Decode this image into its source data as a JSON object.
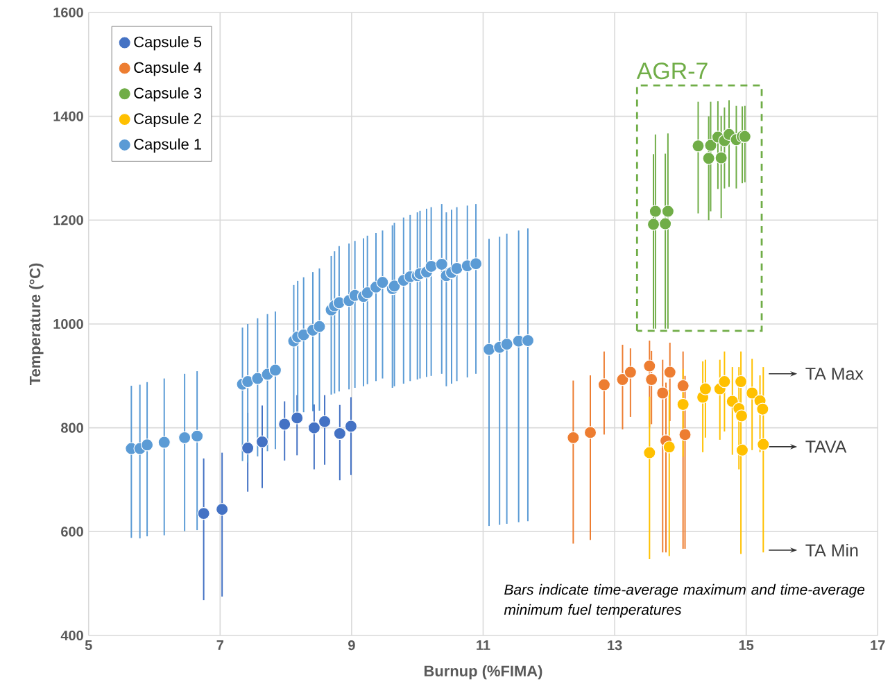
{
  "chart_data": {
    "type": "scatter",
    "xlabel": "Burnup (%FIMA)",
    "ylabel": "Temperature (°C)",
    "xlim": [
      5,
      17
    ],
    "xticks": [
      5,
      7,
      9,
      11,
      13,
      15,
      17
    ],
    "ylim": [
      400,
      1600
    ],
    "yticks": [
      400,
      600,
      800,
      1000,
      1200,
      1400,
      1600
    ],
    "grid": true,
    "legend": "top left",
    "marker": "circle",
    "annotations": [
      "AGR-7",
      "TA Max",
      "TAVA",
      "TA Min",
      "*Bars indicate time-average maximum and time-average minimum fuel temperatures*"
    ],
    "series": [
      {
        "name": "Capsule 5",
        "color": "#4472c4",
        "x": [
          6.75,
          7.03,
          7.42,
          7.64,
          7.98,
          8.17,
          8.43,
          8.59,
          8.82,
          8.99
        ],
        "values": [
          635,
          643,
          761,
          773,
          807,
          819,
          800,
          812,
          789,
          803
        ],
        "errors": [
          [
            468,
            741
          ],
          [
            475,
            752
          ],
          [
            677,
            829
          ],
          [
            684,
            843
          ],
          [
            737,
            851
          ],
          [
            747,
            863
          ],
          [
            720,
            845
          ],
          [
            729,
            863
          ],
          [
            699,
            844
          ],
          [
            709,
            859
          ]
        ]
      },
      {
        "name": "Capsule 4",
        "color": "#ed7d31",
        "x": [
          12.37,
          12.63,
          12.84,
          13.12,
          13.24,
          13.53,
          13.56,
          13.73,
          13.78,
          13.84,
          14.04,
          14.07
        ],
        "values": [
          781,
          791,
          883,
          893,
          907,
          919,
          893,
          867,
          775,
          907,
          881,
          787
        ],
        "errors": [
          [
            577,
            891
          ],
          [
            584,
            901
          ],
          [
            787,
            947
          ],
          [
            797,
            960
          ],
          [
            821,
            953
          ],
          [
            801,
            968
          ],
          [
            807,
            948
          ],
          [
            560,
            931
          ],
          [
            560,
            887
          ],
          [
            813,
            964
          ],
          [
            567,
            947
          ],
          [
            567,
            900
          ]
        ]
      },
      {
        "name": "Capsule 3",
        "color": "#70ad47",
        "x": [
          13.59,
          13.62,
          13.77,
          13.81,
          14.27,
          14.43,
          14.46,
          14.57,
          14.62,
          14.67,
          14.74,
          14.85,
          14.94,
          14.98
        ],
        "values": [
          1192,
          1217,
          1193,
          1217,
          1343,
          1319,
          1344,
          1360,
          1320,
          1353,
          1365,
          1355,
          1361,
          1361
        ],
        "errors": [
          [
            991,
            1327
          ],
          [
            991,
            1365
          ],
          [
            991,
            1328
          ],
          [
            991,
            1367
          ],
          [
            1213,
            1428
          ],
          [
            1200,
            1400
          ],
          [
            1217,
            1428
          ],
          [
            1260,
            1429
          ],
          [
            1204,
            1401
          ],
          [
            1261,
            1417
          ],
          [
            1264,
            1431
          ],
          [
            1261,
            1420
          ],
          [
            1271,
            1419
          ],
          [
            1273,
            1420
          ]
        ]
      },
      {
        "name": "Capsule 2",
        "color": "#ffc000",
        "x": [
          13.53,
          13.83,
          14.04,
          14.34,
          14.38,
          14.6,
          14.67,
          14.79,
          14.89,
          14.92,
          14.93,
          14.94,
          15.09,
          15.21,
          15.25,
          15.26
        ],
        "values": [
          752,
          763,
          845,
          859,
          875,
          875,
          889,
          851,
          837,
          889,
          823,
          757,
          867,
          852,
          836,
          768
        ],
        "errors": [
          [
            547,
            860
          ],
          [
            553,
            873
          ],
          [
            744,
            913
          ],
          [
            753,
            928
          ],
          [
            781,
            931
          ],
          [
            777,
            931
          ],
          [
            793,
            947
          ],
          [
            748,
            917
          ],
          [
            720,
            917
          ],
          [
            557,
            947
          ],
          null,
          null,
          [
            757,
            933
          ],
          [
            753,
            901
          ],
          null,
          [
            560,
            917
          ]
        ]
      },
      {
        "name": "Capsule 1",
        "color": "#5b9bd5",
        "x": [
          5.65,
          5.78,
          5.89,
          6.15,
          6.46,
          6.65,
          7.34,
          7.42,
          7.57,
          7.72,
          7.84,
          8.12,
          8.18,
          8.27,
          8.41,
          8.51,
          8.69,
          8.74,
          8.81,
          8.96,
          9.05,
          9.18,
          9.24,
          9.37,
          9.47,
          9.62,
          9.65,
          9.79,
          9.89,
          10.0,
          10.04,
          10.14,
          10.21,
          10.37,
          10.44,
          10.52,
          10.6,
          10.76,
          10.89,
          11.09,
          11.25,
          11.36,
          11.54,
          11.68
        ],
        "values": [
          760,
          760,
          767,
          772,
          781,
          784,
          884,
          889,
          895,
          903,
          911,
          967,
          975,
          979,
          988,
          995,
          1027,
          1035,
          1041,
          1045,
          1055,
          1053,
          1060,
          1071,
          1080,
          1068,
          1073,
          1084,
          1091,
          1093,
          1097,
          1100,
          1111,
          1115,
          1093,
          1099,
          1107,
          1112,
          1116,
          951,
          955,
          961,
          967,
          968
        ],
        "errors": [
          [
            588,
            881
          ],
          [
            587,
            883
          ],
          [
            591,
            888
          ],
          [
            593,
            895
          ],
          [
            601,
            904
          ],
          [
            603,
            909
          ],
          [
            736,
            993
          ],
          [
            733,
            1000
          ],
          [
            745,
            1011
          ],
          [
            755,
            1019
          ],
          [
            759,
            1024
          ],
          [
            827,
            1075
          ],
          [
            829,
            1083
          ],
          [
            830,
            1090
          ],
          [
            832,
            1100
          ],
          [
            833,
            1107
          ],
          [
            864,
            1131
          ],
          [
            866,
            1140
          ],
          [
            870,
            1150
          ],
          [
            874,
            1155
          ],
          [
            877,
            1160
          ],
          [
            880,
            1165
          ],
          [
            884,
            1170
          ],
          [
            890,
            1175
          ],
          [
            895,
            1180
          ],
          [
            877,
            1190
          ],
          [
            880,
            1195
          ],
          [
            885,
            1205
          ],
          [
            890,
            1210
          ],
          [
            893,
            1215
          ],
          [
            895,
            1218
          ],
          [
            898,
            1222
          ],
          [
            900,
            1225
          ],
          [
            904,
            1231
          ],
          [
            880,
            1215
          ],
          [
            885,
            1220
          ],
          [
            890,
            1225
          ],
          [
            897,
            1228
          ],
          [
            904,
            1231
          ],
          [
            611,
            1164
          ],
          [
            613,
            1168
          ],
          [
            615,
            1174
          ],
          [
            618,
            1180
          ],
          [
            620,
            1184
          ]
        ]
      }
    ]
  }
}
